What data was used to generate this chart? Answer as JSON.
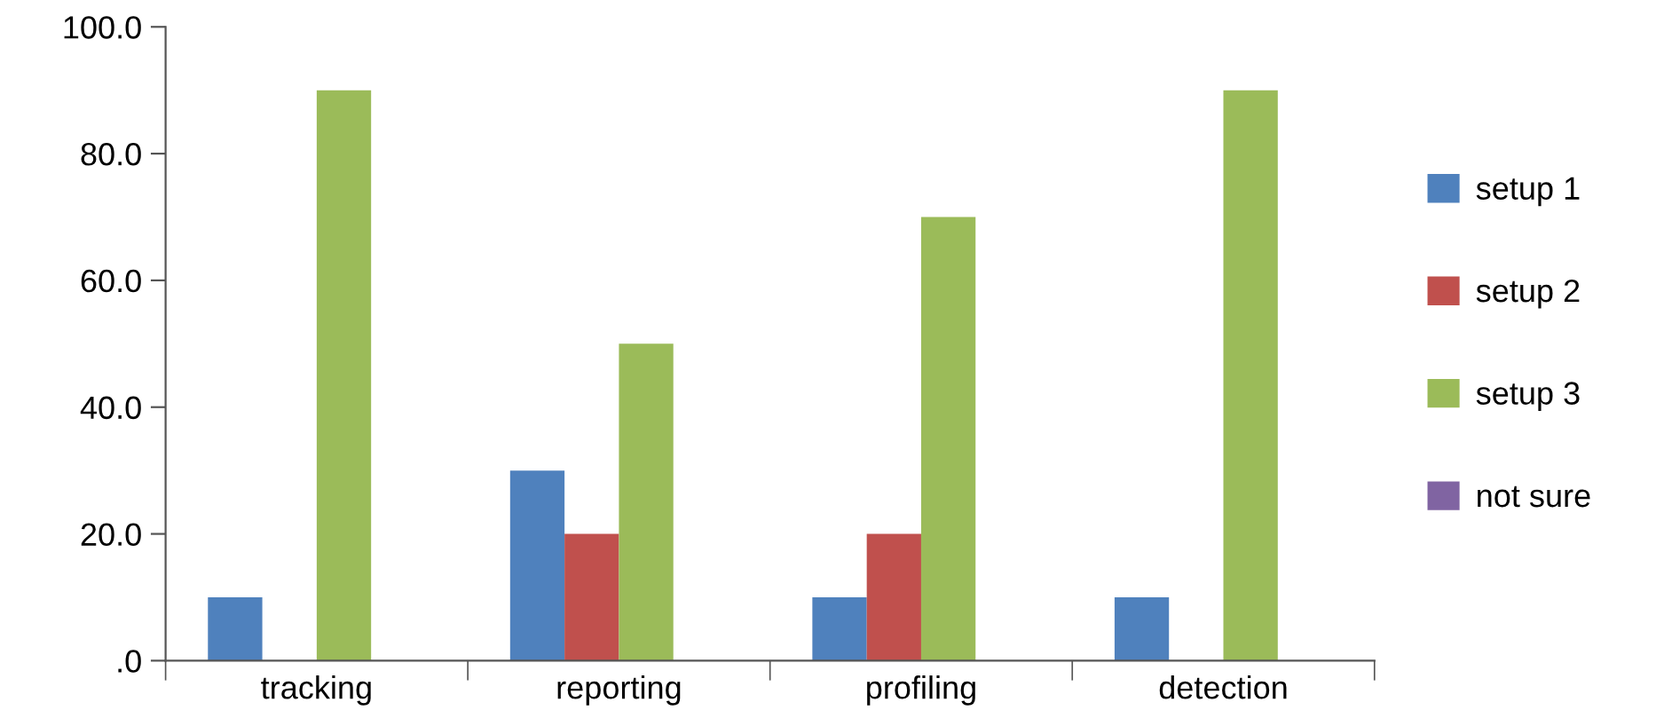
{
  "chart_data": {
    "type": "bar",
    "categories": [
      "tracking",
      "reporting",
      "profiling",
      "detection"
    ],
    "series": [
      {
        "name": "setup 1",
        "color": "#4f81bd",
        "values": [
          10,
          30,
          10,
          10
        ]
      },
      {
        "name": "setup 2",
        "color": "#c0504d",
        "values": [
          0,
          20,
          20,
          0
        ]
      },
      {
        "name": "setup 3",
        "color": "#9bbb59",
        "values": [
          90,
          50,
          70,
          90
        ]
      },
      {
        "name": "not sure",
        "color": "#8064a2",
        "values": [
          0,
          0,
          0,
          0
        ]
      }
    ],
    "ylim": [
      0,
      100
    ],
    "yticks": [
      {
        "value": 0,
        "label": ".0"
      },
      {
        "value": 20,
        "label": "20.0"
      },
      {
        "value": 40,
        "label": "40.0"
      },
      {
        "value": 60,
        "label": "60.0"
      },
      {
        "value": 80,
        "label": "80.0"
      },
      {
        "value": 100,
        "label": "100.0"
      }
    ],
    "grid": false,
    "legend": "right"
  }
}
